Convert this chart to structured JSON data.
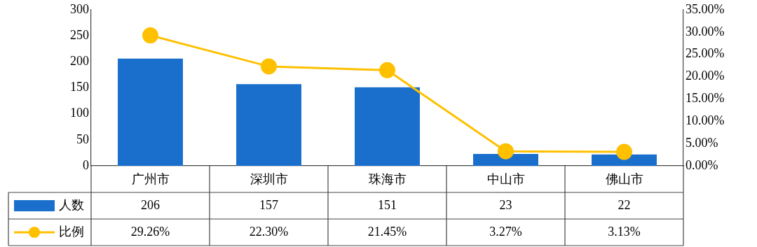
{
  "chart_data": {
    "type": "bar",
    "categories": [
      "广州市",
      "深圳市",
      "珠海市",
      "中山市",
      "佛山市"
    ],
    "series": [
      {
        "name": "人数",
        "color": "#1a6fcc",
        "values": [
          206,
          157,
          151,
          23,
          22
        ],
        "value_labels": [
          "206",
          "157",
          "151",
          "23",
          "22"
        ]
      },
      {
        "name": "比例",
        "type": "line",
        "axis": "y2",
        "color": "#ffc000",
        "values": [
          29.26,
          22.3,
          21.45,
          3.27,
          3.13
        ],
        "value_labels": [
          "29.26%",
          "22.30%",
          "21.45%",
          "3.27%",
          "3.13%"
        ],
        "marker": "circle"
      }
    ],
    "ylim": [
      0,
      300
    ],
    "yticks": [
      0,
      50,
      100,
      150,
      200,
      250,
      300
    ],
    "y2lim": [
      0,
      35
    ],
    "y2ticks": [
      {
        "value": 0,
        "label": "0.00%"
      },
      {
        "value": 5,
        "label": "5.00%"
      },
      {
        "value": 10,
        "label": "10.00%"
      },
      {
        "value": 15,
        "label": "15.00%"
      },
      {
        "value": 20,
        "label": "20.00%"
      },
      {
        "value": 25,
        "label": "25.00%"
      },
      {
        "value": 30,
        "label": "30.00%"
      },
      {
        "value": 35,
        "label": "35.00%"
      }
    ],
    "grid": false,
    "legend": "bottom left"
  }
}
